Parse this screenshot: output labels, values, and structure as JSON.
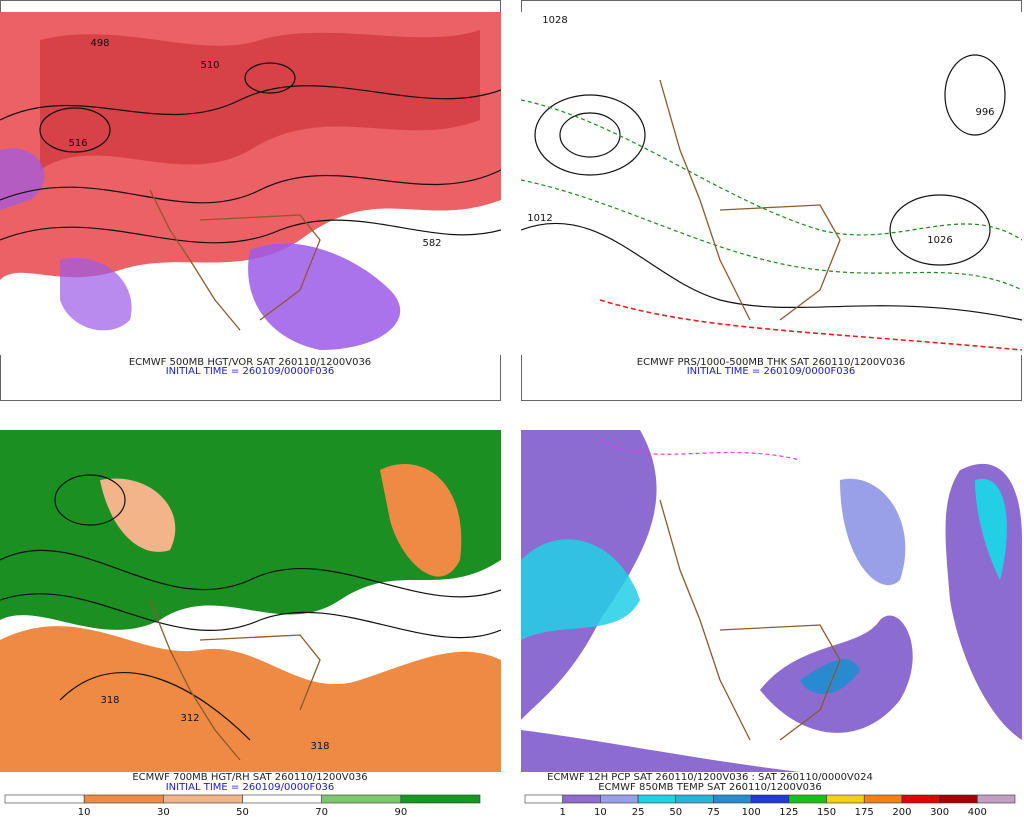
{
  "panels": [
    {
      "caption": "ECMWF 500MB HGT/VOR SAT 260110/1200V036",
      "initial": "INITIAL TIME = 260109/0000F036",
      "contour_labels": [
        "510",
        "582",
        "516",
        "498"
      ]
    },
    {
      "caption": "ECMWF PRS/1000-500MB THK SAT 260110/1200V036",
      "initial": "INITIAL TIME = 260109/0000F036",
      "contour_labels": [
        "1026",
        "996",
        "1012",
        "1028"
      ]
    },
    {
      "caption": "ECMWF 700MB HGT/RH SAT 260110/1200V036",
      "initial": "INITIAL TIME = 260109/0000F036",
      "contour_labels": [
        "318",
        "312",
        "318"
      ],
      "colorbar": [
        10,
        30,
        50,
        70,
        90
      ]
    },
    {
      "caption": "ECMWF 12H PCP SAT 260110/1200V036 : SAT 260110/0000V024",
      "initial": "ECMWF 850MB TEMP SAT 260110/1200V036",
      "contour_labels": [],
      "colorbar": [
        1,
        10,
        25,
        50,
        75,
        100,
        125,
        150,
        175,
        200,
        300,
        400
      ]
    }
  ]
}
